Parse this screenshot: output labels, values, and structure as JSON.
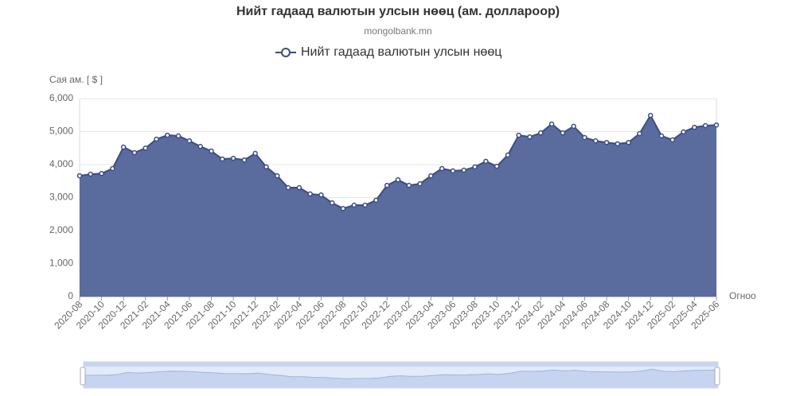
{
  "chart_data": {
    "type": "area",
    "title": "Нийт гадаад валютын улсын нөөц (ам. доллароор)",
    "subtitle": "mongolbank.mn",
    "y_axis_label": "Сая ам. [ $ ]",
    "x_axis_label": "Огноо",
    "categories": [
      "2020-08",
      null,
      "2020-10",
      null,
      "2020-12",
      null,
      "2021-02",
      null,
      "2021-04",
      null,
      "2021-06",
      null,
      "2021-08",
      null,
      "2021-10",
      null,
      "2021-12",
      null,
      "2022-02",
      null,
      "2022-04",
      null,
      "2022-06",
      null,
      "2022-08",
      null,
      "2022-10",
      null,
      "2022-12",
      null,
      "2023-02",
      null,
      "2023-04",
      null,
      "2023-06",
      null,
      "2023-08",
      null,
      "2023-10",
      null,
      "2023-12",
      null,
      "2024-02",
      null,
      "2024-04",
      null,
      "2024-06",
      null,
      "2024-08",
      null,
      "2024-10",
      null,
      "2024-12",
      null,
      "2025-02",
      null,
      "2025-04",
      null,
      "2025-06"
    ],
    "series": [
      {
        "name": "Нийт гадаад валютын улсын нөөц",
        "color": "#3a4d85",
        "fill": "#5a6b9d",
        "values": [
          3660,
          3710,
          3730,
          3880,
          4530,
          4360,
          4500,
          4770,
          4890,
          4870,
          4720,
          4550,
          4410,
          4170,
          4190,
          4140,
          4340,
          3930,
          3660,
          3300,
          3300,
          3110,
          3080,
          2840,
          2670,
          2770,
          2770,
          2920,
          3370,
          3540,
          3370,
          3420,
          3660,
          3880,
          3810,
          3830,
          3930,
          4100,
          3950,
          4290,
          4890,
          4840,
          4960,
          5230,
          4960,
          5160,
          4820,
          4720,
          4670,
          4630,
          4670,
          4940,
          5490,
          4870,
          4750,
          4990,
          5130,
          5180,
          5200
        ]
      }
    ],
    "ylim": [
      0,
      6000
    ],
    "yticks": [
      0,
      {
        "value": 1000,
        "label": "1,000"
      },
      {
        "value": 2000,
        "label": "2,000"
      },
      {
        "value": 3000,
        "label": "3,000"
      },
      {
        "value": 4000,
        "label": "4,000"
      },
      {
        "value": 5000,
        "label": "5,000"
      },
      {
        "value": 6000,
        "label": "6,000"
      }
    ],
    "grid": true
  }
}
